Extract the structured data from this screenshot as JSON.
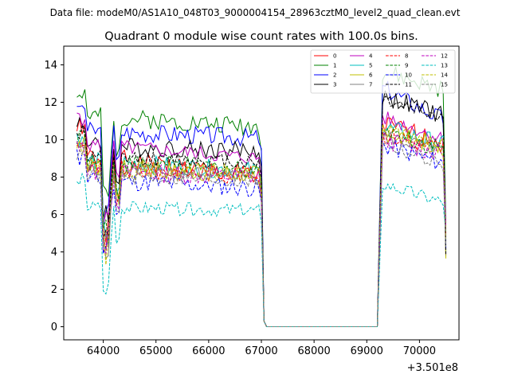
{
  "figure": {
    "suptitle": "Data file: modeM0/AS1A10_048T03_9000004154_28963cztM0_level2_quad_clean.evt"
  },
  "chart_data": {
    "type": "line",
    "title": "Quadrant 0 module wise count rates with 100.0s bins.",
    "xlabel": "",
    "ylabel": "",
    "x_offset_label": "+3.501e8",
    "xlim": [
      63250,
      70750
    ],
    "ylim": [
      -0.7,
      15
    ],
    "xticks": [
      64000,
      65000,
      66000,
      67000,
      68000,
      69000,
      70000
    ],
    "yticks": [
      0,
      2,
      4,
      6,
      8,
      10,
      12,
      14
    ],
    "grid": false,
    "legend_position": "top-right",
    "segments": [
      {
        "start": 63500,
        "end": 67000
      },
      {
        "start": 67100,
        "end": 69200
      },
      {
        "start": 69300,
        "end": 70500
      }
    ],
    "series": [
      {
        "name": "0",
        "color": "#ff0000",
        "dash": "solid",
        "seed": 1,
        "level1": 9.2,
        "trend1": -1.2,
        "level3": 10.8,
        "trend3": -1.0,
        "noise": 0.55
      },
      {
        "name": "1",
        "color": "#008000",
        "dash": "solid",
        "seed": 2,
        "level1": 11.3,
        "trend1": -0.6,
        "level3": 13.6,
        "trend3": -1.0,
        "noise": 0.5
      },
      {
        "name": "2",
        "color": "#0000ff",
        "dash": "solid",
        "seed": 3,
        "level1": 10.5,
        "trend1": -0.4,
        "level3": 12.8,
        "trend3": -1.8,
        "noise": 0.5
      },
      {
        "name": "3",
        "color": "#000000",
        "dash": "solid",
        "seed": 4,
        "level1": 9.7,
        "trend1": -0.3,
        "level3": 12.3,
        "trend3": -1.0,
        "noise": 0.5
      },
      {
        "name": "4",
        "color": "#bf00bf",
        "dash": "solid",
        "seed": 5,
        "level1": 9.8,
        "trend1": -0.8,
        "level3": 11.2,
        "trend3": -1.2,
        "noise": 0.4
      },
      {
        "name": "5",
        "color": "#00bfbf",
        "dash": "solid",
        "seed": 6,
        "level1": 8.9,
        "trend1": -0.6,
        "level3": 10.7,
        "trend3": -1.0,
        "noise": 0.5
      },
      {
        "name": "6",
        "color": "#bfbf00",
        "dash": "solid",
        "seed": 7,
        "level1": 8.6,
        "trend1": -0.5,
        "level3": 10.4,
        "trend3": -0.8,
        "noise": 0.5
      },
      {
        "name": "7",
        "color": "#808080",
        "dash": "solid",
        "seed": 8,
        "level1": 8.4,
        "trend1": -0.3,
        "level3": 10.2,
        "trend3": -0.9,
        "noise": 0.4
      },
      {
        "name": "8",
        "color": "#ff0000",
        "dash": "dashed",
        "seed": 9,
        "level1": 8.5,
        "trend1": -0.4,
        "level3": 10.3,
        "trend3": -0.8,
        "noise": 0.5
      },
      {
        "name": "9",
        "color": "#008000",
        "dash": "dashed",
        "seed": 10,
        "level1": 8.9,
        "trend1": -0.5,
        "level3": 10.6,
        "trend3": -1.2,
        "noise": 0.5
      },
      {
        "name": "10",
        "color": "#0000ff",
        "dash": "dashed",
        "seed": 11,
        "level1": 7.9,
        "trend1": -0.5,
        "level3": 9.7,
        "trend3": -1.0,
        "noise": 0.5
      },
      {
        "name": "11",
        "color": "#000000",
        "dash": "dashed",
        "seed": 12,
        "level1": 9.1,
        "trend1": -0.3,
        "level3": 12.2,
        "trend3": -1.0,
        "noise": 0.4
      },
      {
        "name": "12",
        "color": "#bf00bf",
        "dash": "dashed",
        "seed": 13,
        "level1": 8.3,
        "trend1": -0.3,
        "level3": 10.0,
        "trend3": -0.8,
        "noise": 0.5
      },
      {
        "name": "13",
        "color": "#00bfbf",
        "dash": "dashed",
        "seed": 14,
        "level1": 6.4,
        "trend1": -0.2,
        "level3": 7.6,
        "trend3": -1.0,
        "noise": 0.35
      },
      {
        "name": "14",
        "color": "#bfbf00",
        "dash": "dashed",
        "seed": 15,
        "level1": 8.5,
        "trend1": -0.4,
        "level3": 10.6,
        "trend3": -1.3,
        "noise": 0.5
      },
      {
        "name": "15",
        "color": "#808080",
        "dash": "dashed",
        "seed": 16,
        "level1": 8.1,
        "trend1": -0.3,
        "level3": 9.8,
        "trend3": -1.2,
        "noise": 0.4
      }
    ]
  }
}
